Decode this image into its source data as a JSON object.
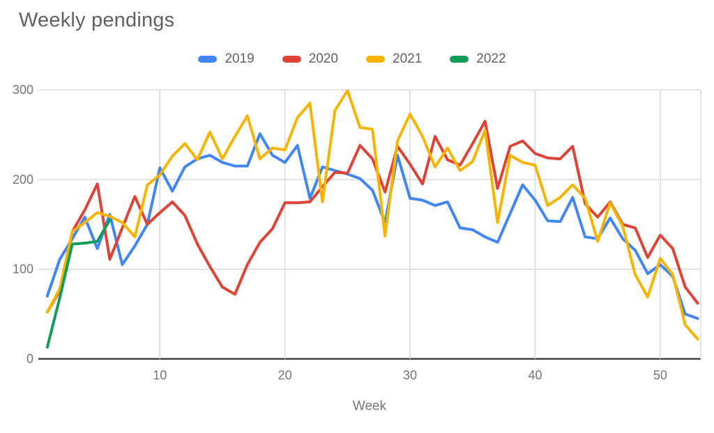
{
  "title": "Weekly pendings",
  "chart_data": {
    "type": "line",
    "title": "Weekly pendings",
    "xlabel": "Week",
    "ylabel": "",
    "xlim": [
      1,
      53
    ],
    "ylim": [
      0,
      300
    ],
    "x_ticks": [
      10,
      20,
      30,
      40,
      50
    ],
    "y_ticks": [
      0,
      100,
      200,
      300
    ],
    "grid": true,
    "legend_position": "top",
    "x_unit": "week-number",
    "series": [
      {
        "name": "2019",
        "color": "#4285F4",
        "start_week": 1,
        "values": [
          70,
          111,
          134,
          158,
          123,
          161,
          105,
          126,
          150,
          213,
          187,
          214,
          223,
          227,
          219,
          215,
          215,
          251,
          227,
          219,
          238,
          179,
          214,
          210,
          206,
          201,
          188,
          152,
          227,
          179,
          177,
          171,
          175,
          146,
          144,
          136,
          130,
          162,
          194,
          177,
          154,
          153,
          180,
          136,
          134,
          157,
          134,
          121,
          95,
          105,
          92,
          50,
          45
        ]
      },
      {
        "name": "2020",
        "color": "#DB4437",
        "start_week": 1,
        "values": [
          52,
          76,
          142,
          166,
          195,
          111,
          146,
          181,
          150,
          163,
          175,
          160,
          128,
          103,
          80,
          72,
          105,
          130,
          145,
          174,
          174,
          175,
          192,
          208,
          207,
          238,
          223,
          186,
          237,
          217,
          195,
          248,
          222,
          216,
          240,
          265,
          190,
          237,
          243,
          229,
          224,
          223,
          237,
          173,
          158,
          175,
          150,
          146,
          113,
          138,
          123,
          80,
          62
        ]
      },
      {
        "name": "2021",
        "color": "#F4B400",
        "start_week": 1,
        "values": [
          52,
          78,
          142,
          152,
          163,
          159,
          152,
          136,
          194,
          205,
          226,
          240,
          222,
          253,
          223,
          248,
          271,
          223,
          235,
          233,
          269,
          285,
          175,
          277,
          299,
          258,
          256,
          137,
          243,
          273,
          248,
          214,
          235,
          210,
          220,
          255,
          152,
          227,
          219,
          216,
          171,
          180,
          194,
          179,
          131,
          174,
          148,
          94,
          69,
          112,
          94,
          38,
          22
        ]
      },
      {
        "name": "2022",
        "color": "#0F9D58",
        "start_week": 1,
        "values": [
          13,
          68,
          128,
          129,
          131,
          155
        ]
      }
    ]
  },
  "styles": {
    "background": "#FFFFFF",
    "title_color": "#616161",
    "legend_text_color": "#616161",
    "tick_label_color": "#757575",
    "axis_title_color": "#757575",
    "grid_color": "#D9D9D9",
    "baseline_color": "#424242"
  }
}
